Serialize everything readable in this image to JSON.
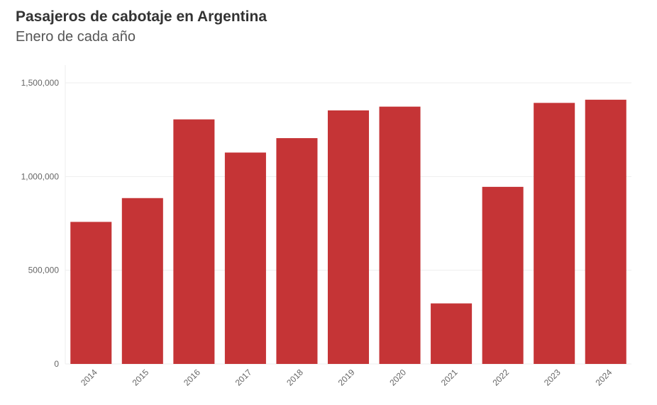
{
  "chart_data": {
    "type": "bar",
    "title": "Pasajeros de cabotaje en Argentina",
    "subtitle": "Enero de cada año",
    "xlabel": "",
    "ylabel": "",
    "categories": [
      "2014",
      "2015",
      "2016",
      "2017",
      "2018",
      "2019",
      "2020",
      "2021",
      "2022",
      "2023",
      "2024"
    ],
    "values": [
      758000,
      885000,
      1305000,
      1128000,
      1205000,
      1353000,
      1373000,
      323000,
      945000,
      1393000,
      1410000
    ],
    "ylim": [
      0,
      1500000
    ],
    "yticks": [
      {
        "value": 0,
        "label": "0"
      },
      {
        "value": 500000,
        "label": "500,000"
      },
      {
        "value": 1000000,
        "label": "1,000,000"
      },
      {
        "value": 1500000,
        "label": "1,500,000"
      }
    ],
    "grid": true,
    "legend": "none",
    "bar_color": "#c53436",
    "grid_color": "#eeeeee"
  }
}
